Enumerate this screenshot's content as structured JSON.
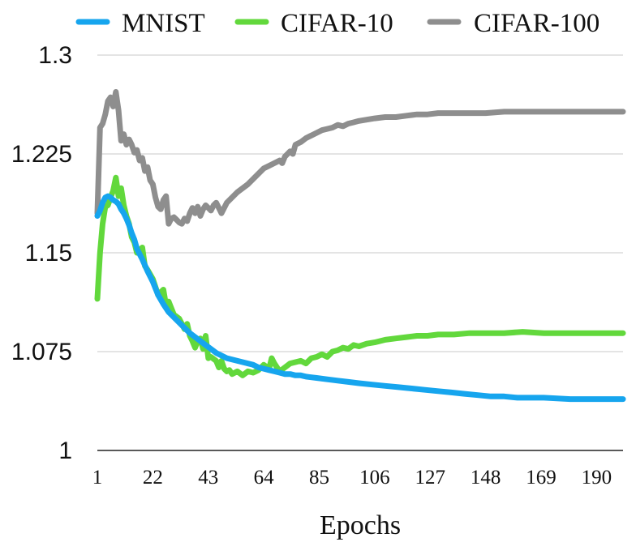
{
  "chart_data": {
    "type": "line",
    "title": "",
    "xlabel": "Epochs",
    "ylabel": "",
    "xlim": [
      1,
      200
    ],
    "ylim": [
      1,
      1.3
    ],
    "x_ticks": [
      1,
      22,
      43,
      64,
      85,
      106,
      127,
      148,
      169,
      190
    ],
    "y_ticks": [
      1,
      1.075,
      1.15,
      1.225,
      1.3
    ],
    "y_tick_labels": [
      "1",
      "1.075",
      "1.15",
      "1.225",
      "1.3"
    ],
    "grid": "horizontal",
    "legend_position": "top",
    "series": [
      {
        "name": "MNIST",
        "color": "#16a5ee",
        "points": [
          [
            1,
            1.178
          ],
          [
            2,
            1.182
          ],
          [
            3,
            1.188
          ],
          [
            4,
            1.192
          ],
          [
            5,
            1.193
          ],
          [
            6,
            1.192
          ],
          [
            7,
            1.19
          ],
          [
            8,
            1.189
          ],
          [
            9,
            1.187
          ],
          [
            10,
            1.183
          ],
          [
            11,
            1.18
          ],
          [
            12,
            1.176
          ],
          [
            13,
            1.171
          ],
          [
            14,
            1.165
          ],
          [
            15,
            1.16
          ],
          [
            16,
            1.153
          ],
          [
            18,
            1.145
          ],
          [
            20,
            1.136
          ],
          [
            22,
            1.128
          ],
          [
            24,
            1.118
          ],
          [
            26,
            1.111
          ],
          [
            28,
            1.105
          ],
          [
            30,
            1.101
          ],
          [
            32,
            1.097
          ],
          [
            34,
            1.093
          ],
          [
            36,
            1.089
          ],
          [
            38,
            1.086
          ],
          [
            40,
            1.083
          ],
          [
            42,
            1.08
          ],
          [
            44,
            1.077
          ],
          [
            46,
            1.074
          ],
          [
            48,
            1.072
          ],
          [
            50,
            1.07
          ],
          [
            52,
            1.069
          ],
          [
            54,
            1.068
          ],
          [
            56,
            1.067
          ],
          [
            58,
            1.066
          ],
          [
            60,
            1.065
          ],
          [
            62,
            1.063
          ],
          [
            64,
            1.062
          ],
          [
            66,
            1.061
          ],
          [
            68,
            1.06
          ],
          [
            70,
            1.059
          ],
          [
            72,
            1.058
          ],
          [
            74,
            1.058
          ],
          [
            76,
            1.057
          ],
          [
            78,
            1.057
          ],
          [
            80,
            1.056
          ],
          [
            84,
            1.055
          ],
          [
            88,
            1.054
          ],
          [
            92,
            1.053
          ],
          [
            96,
            1.052
          ],
          [
            100,
            1.051
          ],
          [
            105,
            1.05
          ],
          [
            110,
            1.049
          ],
          [
            115,
            1.048
          ],
          [
            120,
            1.047
          ],
          [
            125,
            1.046
          ],
          [
            130,
            1.045
          ],
          [
            135,
            1.044
          ],
          [
            140,
            1.043
          ],
          [
            145,
            1.042
          ],
          [
            150,
            1.041
          ],
          [
            155,
            1.041
          ],
          [
            160,
            1.04
          ],
          [
            165,
            1.04
          ],
          [
            170,
            1.04
          ],
          [
            180,
            1.039
          ],
          [
            190,
            1.039
          ],
          [
            200,
            1.039
          ]
        ]
      },
      {
        "name": "CIFAR-10",
        "color": "#62d83c",
        "points": [
          [
            1,
            1.115
          ],
          [
            2,
            1.15
          ],
          [
            3,
            1.172
          ],
          [
            4,
            1.185
          ],
          [
            5,
            1.186
          ],
          [
            6,
            1.192
          ],
          [
            7,
            1.197
          ],
          [
            8,
            1.207
          ],
          [
            9,
            1.193
          ],
          [
            10,
            1.199
          ],
          [
            11,
            1.186
          ],
          [
            12,
            1.178
          ],
          [
            13,
            1.172
          ],
          [
            14,
            1.162
          ],
          [
            15,
            1.158
          ],
          [
            16,
            1.15
          ],
          [
            18,
            1.154
          ],
          [
            19,
            1.14
          ],
          [
            20,
            1.137
          ],
          [
            22,
            1.13
          ],
          [
            24,
            1.118
          ],
          [
            26,
            1.122
          ],
          [
            27,
            1.11
          ],
          [
            28,
            1.113
          ],
          [
            30,
            1.103
          ],
          [
            32,
            1.1
          ],
          [
            34,
            1.092
          ],
          [
            35,
            1.096
          ],
          [
            36,
            1.087
          ],
          [
            37,
            1.083
          ],
          [
            38,
            1.078
          ],
          [
            39,
            1.083
          ],
          [
            40,
            1.085
          ],
          [
            41,
            1.077
          ],
          [
            42,
            1.087
          ],
          [
            43,
            1.07
          ],
          [
            44,
            1.071
          ],
          [
            46,
            1.068
          ],
          [
            47,
            1.063
          ],
          [
            48,
            1.068
          ],
          [
            49,
            1.062
          ],
          [
            50,
            1.06
          ],
          [
            51,
            1.061
          ],
          [
            52,
            1.058
          ],
          [
            54,
            1.06
          ],
          [
            56,
            1.057
          ],
          [
            58,
            1.06
          ],
          [
            60,
            1.059
          ],
          [
            62,
            1.061
          ],
          [
            64,
            1.065
          ],
          [
            66,
            1.062
          ],
          [
            67,
            1.07
          ],
          [
            68,
            1.066
          ],
          [
            70,
            1.06
          ],
          [
            72,
            1.063
          ],
          [
            74,
            1.066
          ],
          [
            76,
            1.067
          ],
          [
            78,
            1.068
          ],
          [
            80,
            1.066
          ],
          [
            82,
            1.07
          ],
          [
            84,
            1.071
          ],
          [
            86,
            1.073
          ],
          [
            88,
            1.071
          ],
          [
            90,
            1.075
          ],
          [
            92,
            1.076
          ],
          [
            94,
            1.078
          ],
          [
            96,
            1.077
          ],
          [
            98,
            1.08
          ],
          [
            100,
            1.079
          ],
          [
            103,
            1.081
          ],
          [
            106,
            1.082
          ],
          [
            110,
            1.084
          ],
          [
            114,
            1.085
          ],
          [
            118,
            1.086
          ],
          [
            122,
            1.087
          ],
          [
            126,
            1.087
          ],
          [
            130,
            1.088
          ],
          [
            136,
            1.088
          ],
          [
            142,
            1.089
          ],
          [
            148,
            1.089
          ],
          [
            155,
            1.089
          ],
          [
            162,
            1.09
          ],
          [
            170,
            1.089
          ],
          [
            180,
            1.089
          ],
          [
            190,
            1.089
          ],
          [
            200,
            1.089
          ]
        ]
      },
      {
        "name": "CIFAR-100",
        "color": "#8e8e8e",
        "points": [
          [
            1,
            1.18
          ],
          [
            2,
            1.245
          ],
          [
            3,
            1.248
          ],
          [
            4,
            1.255
          ],
          [
            5,
            1.265
          ],
          [
            6,
            1.268
          ],
          [
            7,
            1.261
          ],
          [
            8,
            1.272
          ],
          [
            9,
            1.258
          ],
          [
            10,
            1.235
          ],
          [
            11,
            1.24
          ],
          [
            12,
            1.232
          ],
          [
            13,
            1.236
          ],
          [
            14,
            1.232
          ],
          [
            15,
            1.226
          ],
          [
            16,
            1.228
          ],
          [
            17,
            1.22
          ],
          [
            18,
            1.222
          ],
          [
            19,
            1.212
          ],
          [
            20,
            1.215
          ],
          [
            21,
            1.205
          ],
          [
            22,
            1.202
          ],
          [
            23,
            1.192
          ],
          [
            24,
            1.185
          ],
          [
            25,
            1.183
          ],
          [
            26,
            1.19
          ],
          [
            27,
            1.193
          ],
          [
            28,
            1.172
          ],
          [
            29,
            1.176
          ],
          [
            30,
            1.177
          ],
          [
            31,
            1.175
          ],
          [
            32,
            1.173
          ],
          [
            33,
            1.172
          ],
          [
            34,
            1.176
          ],
          [
            35,
            1.174
          ],
          [
            36,
            1.18
          ],
          [
            37,
            1.184
          ],
          [
            38,
            1.18
          ],
          [
            39,
            1.185
          ],
          [
            40,
            1.178
          ],
          [
            41,
            1.183
          ],
          [
            42,
            1.186
          ],
          [
            43,
            1.184
          ],
          [
            44,
            1.182
          ],
          [
            45,
            1.186
          ],
          [
            46,
            1.188
          ],
          [
            47,
            1.184
          ],
          [
            48,
            1.18
          ],
          [
            50,
            1.188
          ],
          [
            52,
            1.192
          ],
          [
            54,
            1.196
          ],
          [
            56,
            1.199
          ],
          [
            58,
            1.202
          ],
          [
            60,
            1.206
          ],
          [
            62,
            1.21
          ],
          [
            64,
            1.214
          ],
          [
            66,
            1.216
          ],
          [
            68,
            1.218
          ],
          [
            70,
            1.22
          ],
          [
            71,
            1.218
          ],
          [
            72,
            1.223
          ],
          [
            74,
            1.227
          ],
          [
            75,
            1.225
          ],
          [
            76,
            1.232
          ],
          [
            78,
            1.234
          ],
          [
            80,
            1.237
          ],
          [
            82,
            1.239
          ],
          [
            84,
            1.241
          ],
          [
            86,
            1.243
          ],
          [
            88,
            1.244
          ],
          [
            90,
            1.245
          ],
          [
            92,
            1.247
          ],
          [
            94,
            1.246
          ],
          [
            96,
            1.248
          ],
          [
            98,
            1.249
          ],
          [
            100,
            1.25
          ],
          [
            103,
            1.251
          ],
          [
            106,
            1.252
          ],
          [
            110,
            1.253
          ],
          [
            114,
            1.253
          ],
          [
            118,
            1.254
          ],
          [
            122,
            1.255
          ],
          [
            126,
            1.255
          ],
          [
            130,
            1.256
          ],
          [
            136,
            1.256
          ],
          [
            142,
            1.256
          ],
          [
            148,
            1.256
          ],
          [
            155,
            1.257
          ],
          [
            162,
            1.257
          ],
          [
            170,
            1.257
          ],
          [
            180,
            1.257
          ],
          [
            190,
            1.257
          ],
          [
            200,
            1.257
          ]
        ]
      }
    ]
  }
}
